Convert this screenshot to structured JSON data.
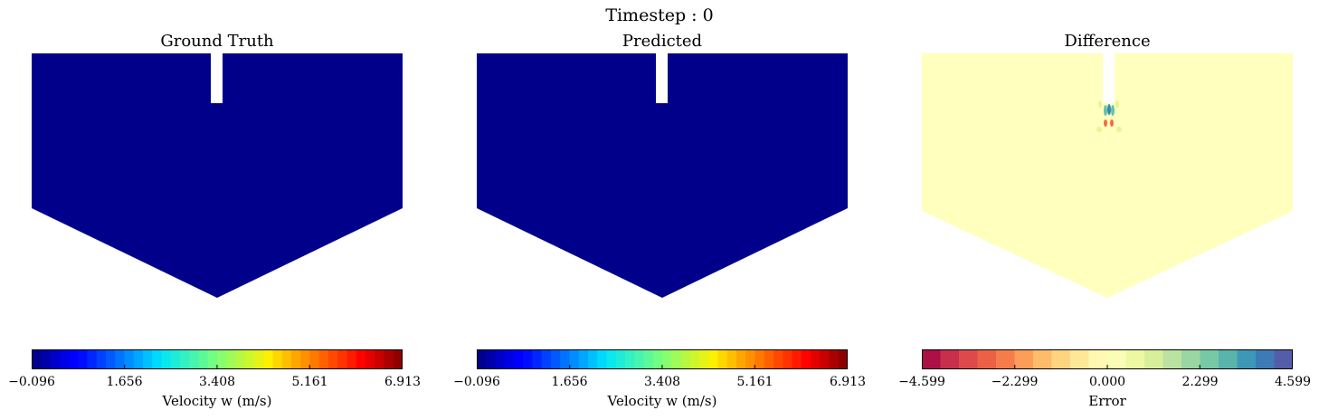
{
  "suptitle": "Timestep :  0",
  "chart_data": [
    {
      "type": "heatmap",
      "title": "Ground Truth",
      "field_value_uniform": -0.096,
      "colormap": "jet",
      "colorbar": {
        "label": "Velocity w (m/s)",
        "range": [
          -0.096,
          6.913
        ],
        "ticks": [
          -0.096,
          1.656,
          3.408,
          5.161,
          6.913
        ],
        "tick_labels": [
          "−0.096",
          "1.656",
          "3.408",
          "5.161",
          "6.913"
        ],
        "levels": 40
      },
      "colors": {
        "field": "#00008b"
      }
    },
    {
      "type": "heatmap",
      "title": "Predicted",
      "field_value_uniform": -0.096,
      "colormap": "jet",
      "colorbar": {
        "label": "Velocity w (m/s)",
        "range": [
          -0.096,
          6.913
        ],
        "ticks": [
          -0.096,
          1.656,
          3.408,
          5.161,
          6.913
        ],
        "tick_labels": [
          "−0.096",
          "1.656",
          "3.408",
          "5.161",
          "6.913"
        ],
        "levels": 40
      },
      "colors": {
        "field": "#00008b"
      }
    },
    {
      "type": "heatmap",
      "title": "Difference",
      "field_value_uniform": 0.0,
      "colormap": "Spectral",
      "colorbar": {
        "label": "Error",
        "range": [
          -4.599,
          4.599
        ],
        "ticks": [
          -4.599,
          -2.299,
          0.0,
          2.299,
          4.599
        ],
        "tick_labels": [
          "−4.599",
          "−2.299",
          "0.000",
          "2.299",
          "4.599"
        ],
        "levels": 20
      },
      "colors": {
        "field": "#ffffbe"
      }
    }
  ]
}
